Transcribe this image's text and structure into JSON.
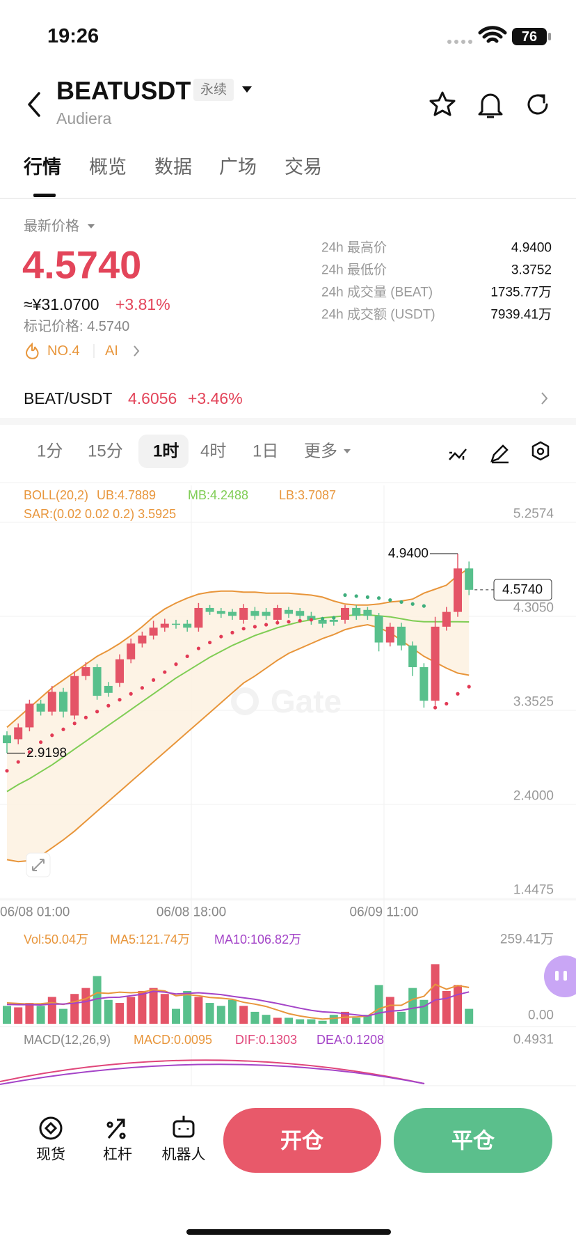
{
  "status_bar": {
    "time": "19:26",
    "battery": "76"
  },
  "header": {
    "symbol": "BEATUSDT",
    "badge": "永续",
    "subtitle": "Audiera"
  },
  "tabs": [
    "行情",
    "概览",
    "数据",
    "广场",
    "交易"
  ],
  "price_panel": {
    "label": "最新价格",
    "last": "4.5740",
    "cny": "≈¥31.0700",
    "change": "+3.81%",
    "mark": "标记价格: 4.5740",
    "rank": "NO.4",
    "ai": "AI",
    "stats": [
      {
        "label": "24h 最高价",
        "value": "4.9400"
      },
      {
        "label": "24h 最低价",
        "value": "3.3752"
      },
      {
        "label": "24h 成交量 (BEAT)",
        "value": "1735.77万"
      },
      {
        "label": "24h 成交额 (USDT)",
        "value": "7939.41万"
      }
    ]
  },
  "spot_row": {
    "pair": "BEAT/USDT",
    "price": "4.6056",
    "change": "+3.46%"
  },
  "intervals": [
    "1分",
    "15分",
    "1时",
    "4时",
    "1日",
    "更多"
  ],
  "chart_data": {
    "type": "candlestick",
    "legend_boll": [
      "BOLL(20,2)",
      "UB:4.7889",
      "MB:4.2488",
      "LB:3.7087"
    ],
    "legend_sar": "SAR:(0.02 0.02 0.2) 3.5925",
    "watermark": "Gate",
    "ylim": [
      1.4475,
      5.2574
    ],
    "yticks": [
      5.2574,
      {
        "value": 4.305,
        "label": "4.3050"
      },
      3.3525,
      {
        "value": 2.4,
        "label": "2.4000"
      },
      1.4475
    ],
    "xlabels": [
      "06/08 01:00",
      "06/08 18:00",
      "06/09 11:00"
    ],
    "high_marker": {
      "value": 4.94,
      "label": "4.9400"
    },
    "low_marker": 2.9198,
    "last_price": {
      "value": 4.574,
      "label": "4.5740"
    },
    "open": [
      3.1,
      3.06,
      3.18,
      3.42,
      3.34,
      3.54,
      3.3,
      3.7,
      3.79,
      3.6,
      3.63,
      3.87,
      4.03,
      4.11,
      4.19,
      4.23,
      4.23,
      4.19,
      4.39,
      4.36,
      4.35,
      4.27,
      4.36,
      4.35,
      4.27,
      4.37,
      4.36,
      4.31,
      4.27,
      4.27,
      4.27,
      4.39,
      4.37,
      4.31,
      4.04,
      4.2,
      4.01,
      3.79,
      3.45,
      4.2,
      4.35,
      4.79
    ],
    "high": [
      3.14,
      3.22,
      3.46,
      3.46,
      3.6,
      3.58,
      3.75,
      3.84,
      3.82,
      3.64,
      3.92,
      4.08,
      4.15,
      4.26,
      4.28,
      4.27,
      4.27,
      4.44,
      4.42,
      4.39,
      4.38,
      4.43,
      4.4,
      4.39,
      4.42,
      4.4,
      4.39,
      4.35,
      4.3,
      4.31,
      4.42,
      4.42,
      4.4,
      4.34,
      4.24,
      4.24,
      4.05,
      3.83,
      4.3,
      4.4,
      4.94,
      4.86
    ],
    "low": [
      2.9198,
      3.01,
      3.14,
      3.3,
      3.3,
      3.28,
      3.26,
      3.66,
      3.46,
      3.49,
      3.59,
      3.83,
      3.99,
      4.07,
      4.15,
      4.18,
      4.15,
      4.15,
      4.32,
      4.29,
      4.27,
      4.23,
      4.27,
      4.27,
      4.23,
      4.29,
      4.27,
      4.22,
      4.19,
      4.21,
      4.23,
      4.27,
      4.27,
      3.95,
      4.0,
      3.96,
      3.7,
      3.38,
      3.4,
      4.16,
      4.3,
      4.52
    ],
    "close": [
      3.02,
      3.18,
      3.42,
      3.34,
      3.54,
      3.34,
      3.7,
      3.79,
      3.5,
      3.53,
      3.87,
      4.03,
      4.11,
      4.19,
      4.23,
      4.22,
      4.19,
      4.39,
      4.35,
      4.33,
      4.31,
      4.39,
      4.31,
      4.31,
      4.39,
      4.33,
      4.31,
      4.27,
      4.23,
      4.25,
      4.39,
      4.31,
      4.31,
      4.04,
      4.2,
      4.01,
      3.79,
      3.45,
      4.2,
      4.35,
      4.79,
      4.574
    ],
    "ub": [
      3.18,
      3.28,
      3.38,
      3.48,
      3.58,
      3.66,
      3.74,
      3.82,
      3.9,
      3.96,
      4.03,
      4.11,
      4.2,
      4.3,
      4.38,
      4.44,
      4.49,
      4.53,
      4.55,
      4.56,
      4.56,
      4.55,
      4.55,
      4.54,
      4.54,
      4.54,
      4.53,
      4.52,
      4.5,
      4.46,
      4.43,
      4.42,
      4.42,
      4.43,
      4.45,
      4.46,
      4.48,
      4.54,
      4.58,
      4.62,
      4.72,
      4.7889
    ],
    "mb": [
      2.53,
      2.6,
      2.66,
      2.73,
      2.8,
      2.88,
      2.96,
      3.04,
      3.12,
      3.2,
      3.28,
      3.36,
      3.44,
      3.52,
      3.6,
      3.68,
      3.75,
      3.82,
      3.89,
      3.95,
      4.01,
      4.06,
      4.11,
      4.15,
      4.19,
      4.22,
      4.25,
      4.27,
      4.29,
      4.3,
      4.31,
      4.32,
      4.32,
      4.31,
      4.3,
      4.28,
      4.26,
      4.25,
      4.25,
      4.25,
      4.25,
      4.2488
    ],
    "lb": [
      1.84,
      1.82,
      1.83,
      1.88,
      1.96,
      2.04,
      2.13,
      2.23,
      2.33,
      2.43,
      2.53,
      2.63,
      2.73,
      2.83,
      2.93,
      3.03,
      3.13,
      3.23,
      3.33,
      3.43,
      3.53,
      3.63,
      3.7,
      3.78,
      3.86,
      3.93,
      3.98,
      4.03,
      4.08,
      4.12,
      4.17,
      4.2,
      4.22,
      4.19,
      4.14,
      4.06,
      3.98,
      3.9,
      3.84,
      3.78,
      3.73,
      3.7087
    ],
    "sar": [
      2.74,
      2.83,
      2.93,
      3.03,
      3.1,
      3.16,
      3.22,
      3.28,
      3.34,
      3.4,
      3.46,
      3.52,
      3.58,
      3.66,
      3.74,
      3.82,
      3.9,
      3.98,
      4.04,
      4.1,
      4.14,
      4.18,
      4.2,
      4.22,
      4.24,
      4.25,
      4.26,
      4.27,
      4.28,
      4.29,
      4.52,
      4.51,
      4.5,
      4.49,
      4.47,
      4.45,
      4.43,
      4.41,
      3.38,
      3.42,
      3.52,
      3.5925
    ],
    "volume": {
      "legend": [
        "Vol:50.04万",
        "MA5:121.74万",
        "MA10:106.82万"
      ],
      "ylim": [
        0,
        259.41
      ],
      "yticks": [
        {
          "value": 259.41,
          "label": "259.41万"
        },
        {
          "value": 0,
          "label": "0.00"
        }
      ],
      "values": [
        60,
        55,
        70,
        60,
        90,
        50,
        100,
        120,
        160,
        80,
        70,
        90,
        110,
        120,
        100,
        50,
        110,
        90,
        70,
        60,
        80,
        60,
        40,
        30,
        20,
        20,
        15,
        15,
        10,
        30,
        40,
        20,
        30,
        130,
        90,
        40,
        120,
        80,
        200,
        110,
        130,
        50.04
      ],
      "ma5": [
        70,
        68,
        66,
        67,
        71,
        65,
        74,
        84,
        104,
        102,
        106,
        104,
        106,
        114,
        110,
        94,
        98,
        94,
        88,
        86,
        82,
        72,
        66,
        58,
        46,
        34,
        26,
        20,
        16,
        18,
        22,
        23,
        26,
        50,
        62,
        62,
        82,
        92,
        132,
        116,
        128,
        121.74
      ],
      "ma10": [
        65,
        64,
        64,
        63,
        66,
        66,
        69,
        74,
        84,
        88,
        89,
        94,
        99,
        109,
        106,
        100,
        102,
        104,
        101,
        98,
        92,
        87,
        82,
        75,
        68,
        60,
        52,
        45,
        40,
        38,
        34,
        30,
        26,
        36,
        42,
        45,
        52,
        58,
        80,
        85,
        98,
        106.82
      ]
    },
    "macd": {
      "legend": [
        "MACD(12,26,9)",
        "MACD:0.0095",
        "DIF:0.1303",
        "DEA:0.1208"
      ],
      "top": "0.4931"
    }
  },
  "bottom_bar": {
    "items": [
      "现货",
      "杠杆",
      "机器人"
    ],
    "open": "开仓",
    "close": "平仓"
  }
}
